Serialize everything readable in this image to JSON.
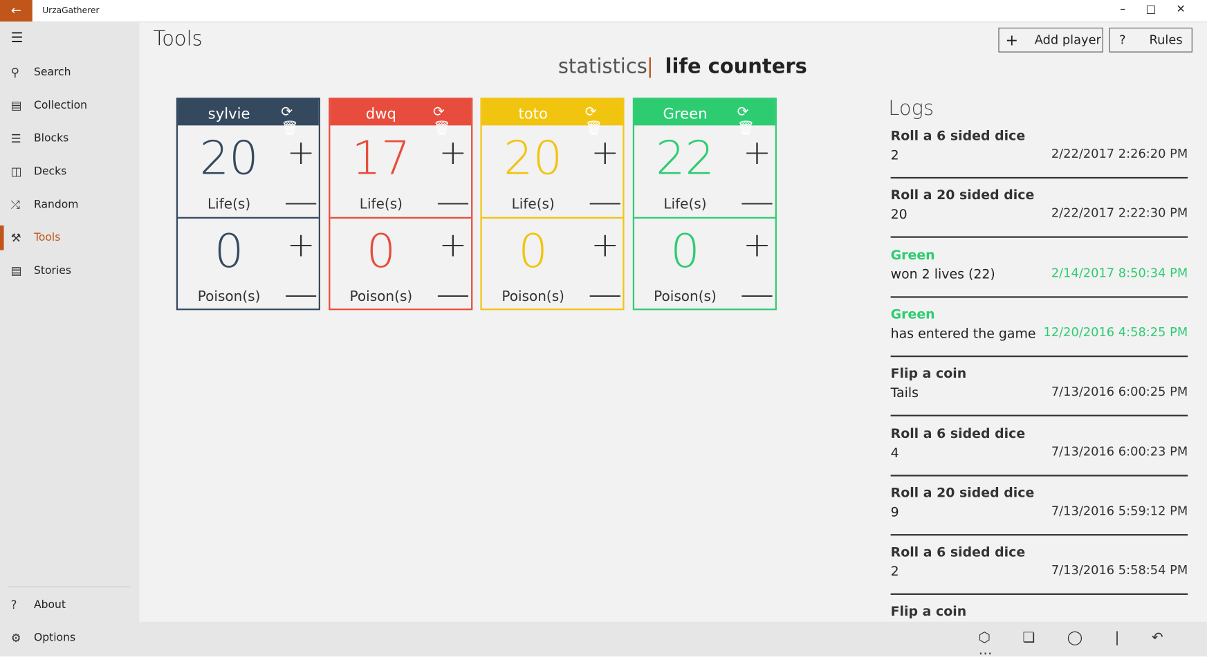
{
  "app": {
    "title": "UrzaGatherer"
  },
  "nav": {
    "items": [
      "Search",
      "Collection",
      "Blocks",
      "Decks",
      "Random",
      "Tools",
      "Stories"
    ],
    "selected": 5,
    "bottom": [
      "About",
      "Options"
    ]
  },
  "header": {
    "title": "Tools",
    "buttons": [
      "Add player",
      "Rules"
    ]
  },
  "tabs": {
    "items": [
      "statistics",
      "life counters"
    ],
    "selected": 1
  },
  "players": [
    {
      "name": "sylvie",
      "color": "#34495e",
      "life": 20,
      "life_label": "Life(s)",
      "poison": 0,
      "poison_label": "Poison(s)"
    },
    {
      "name": "dwq",
      "color": "#e74c3c",
      "life": 17,
      "life_label": "Life(s)",
      "poison": 0,
      "poison_label": "Poison(s)"
    },
    {
      "name": "toto",
      "color": "#f1c40f",
      "life": 20,
      "life_label": "Life(s)",
      "poison": 0,
      "poison_label": "Poison(s)"
    },
    {
      "name": "Green",
      "color": "#2ecc71",
      "life": 22,
      "life_label": "Life(s)",
      "poison": 0,
      "poison_label": "Poison(s)"
    }
  ],
  "logs": {
    "title": "Logs",
    "entries": [
      {
        "title": "Roll a 6 sided dice",
        "detail": "2",
        "time": "2/22/2017 2:26:20 PM",
        "color": "#333333"
      },
      {
        "title": "Roll a 20 sided dice",
        "detail": "20",
        "time": "2/22/2017 2:22:30 PM",
        "color": "#333333"
      },
      {
        "title": "Green",
        "detail": "won 2 lives (22)",
        "time": "2/14/2017 8:50:34 PM",
        "color": "#2ecc71"
      },
      {
        "title": "Green",
        "detail": "has entered the game",
        "time": "12/20/2016 4:58:25 PM",
        "color": "#2ecc71"
      },
      {
        "title": "Flip a coin",
        "detail": "Tails",
        "time": "7/13/2016 6:00:25 PM",
        "color": "#333333"
      },
      {
        "title": "Roll a 6 sided dice",
        "detail": "4",
        "time": "7/13/2016 6:00:23 PM",
        "color": "#333333"
      },
      {
        "title": "Roll a 20 sided dice",
        "detail": "9",
        "time": "7/13/2016 5:59:12 PM",
        "color": "#333333"
      },
      {
        "title": "Roll a 6 sided dice",
        "detail": "2",
        "time": "7/13/2016 5:58:54 PM",
        "color": "#333333"
      },
      {
        "title": "Flip a coin",
        "color": "#333333"
      }
    ]
  }
}
